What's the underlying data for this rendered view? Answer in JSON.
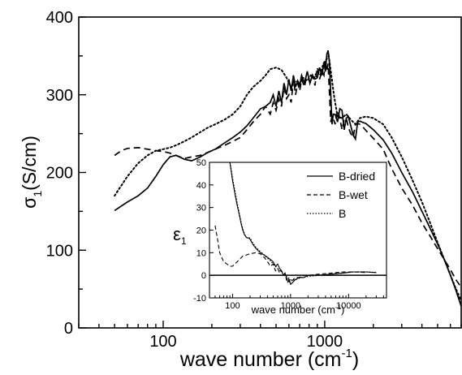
{
  "chart_data": [
    {
      "type": "line",
      "xlabel": "wave number (cm-1)",
      "ylabel": "σ1(S/cm)",
      "xscale": "log",
      "xlim": [
        30,
        7000
      ],
      "ylim": [
        0,
        400
      ],
      "yticks": [
        "0",
        "100",
        "200",
        "300",
        "400"
      ],
      "xticks": [
        "100",
        "1000"
      ],
      "grid": false,
      "series": [
        {
          "style": "solid",
          "x": [
            50,
            60,
            70,
            80,
            90,
            100,
            110,
            120,
            135,
            150,
            170,
            190,
            210,
            240,
            270,
            300,
            330,
            360,
            400,
            430,
            460,
            480,
            500,
            520,
            540,
            560,
            580,
            600,
            620,
            640,
            660,
            680,
            700,
            720,
            750,
            780,
            810,
            840,
            870,
            900,
            930,
            960,
            990,
            1010,
            1030,
            1050,
            1070,
            1090,
            1110,
            1130,
            1160,
            1200,
            1240,
            1280,
            1320,
            1360,
            1400,
            1450,
            1500,
            1550,
            1600,
            1650,
            1700,
            1800,
            2000,
            2300,
            2600,
            3000,
            3500,
            4000,
            4500,
            5000,
            5500,
            6000,
            6500,
            7000
          ],
          "y": [
            151,
            162,
            170,
            180,
            195,
            210,
            220,
            222,
            217,
            215,
            220,
            226,
            230,
            238,
            245,
            252,
            260,
            270,
            282,
            285,
            290,
            300,
            285,
            305,
            290,
            315,
            300,
            320,
            305,
            325,
            310,
            318,
            312,
            325,
            315,
            330,
            315,
            325,
            320,
            322,
            335,
            325,
            340,
            330,
            352,
            357,
            340,
            300,
            262,
            275,
            275,
            265,
            282,
            280,
            255,
            270,
            272,
            260,
            248,
            243,
            265,
            266,
            265,
            263,
            255,
            242,
            225,
            200,
            175,
            150,
            128,
            108,
            88,
            68,
            48,
            28
          ]
        },
        {
          "style": "dashed",
          "x": [
            50,
            55,
            60,
            70,
            80,
            90,
            100,
            110,
            120,
            135,
            150,
            170,
            190,
            210,
            240,
            270,
            300,
            330,
            360,
            400,
            430,
            460,
            480,
            500,
            520,
            540,
            560,
            580,
            600,
            620,
            640,
            660,
            680,
            700,
            720,
            750,
            780,
            810,
            840,
            870,
            900,
            930,
            960,
            990,
            1010,
            1030,
            1050,
            1070,
            1090,
            1110,
            1130,
            1160,
            1200,
            1240,
            1280,
            1320,
            1360,
            1400,
            1450,
            1500,
            1550,
            1600,
            1650,
            1700,
            1800,
            2000,
            2300,
            2600,
            3000,
            3500,
            4000,
            4500,
            5000,
            5500,
            6000,
            6500,
            7000
          ],
          "y": [
            222,
            228,
            231,
            232,
            230,
            228,
            227,
            225,
            222,
            218,
            220,
            222,
            226,
            230,
            235,
            240,
            245,
            255,
            265,
            275,
            285,
            275,
            290,
            280,
            295,
            285,
            310,
            295,
            300,
            290,
            320,
            300,
            315,
            305,
            320,
            310,
            330,
            315,
            325,
            312,
            335,
            320,
            330,
            325,
            345,
            330,
            340,
            300,
            265,
            272,
            270,
            262,
            280,
            270,
            255,
            268,
            270,
            258,
            250,
            245,
            262,
            263,
            262,
            260,
            254,
            244,
            230,
            205,
            180,
            158,
            135,
            118,
            102,
            88,
            75,
            62,
            52
          ]
        },
        {
          "style": "dotted",
          "x": [
            50,
            60,
            70,
            80,
            90,
            100,
            110,
            120,
            135,
            150,
            170,
            190,
            210,
            240,
            270,
            300,
            330,
            360,
            400,
            430,
            460,
            500,
            540,
            580,
            620,
            660,
            700,
            740,
            780,
            820,
            860,
            900,
            940,
            980,
            1020,
            1060,
            1100,
            1140,
            1200,
            1280,
            1360,
            1450,
            1550,
            1650,
            1800,
            2000,
            2300,
            2600,
            3000,
            3500,
            4000,
            4500,
            5000,
            5500,
            6000,
            6500,
            7000
          ],
          "y": [
            170,
            195,
            212,
            222,
            228,
            230,
            232,
            235,
            240,
            245,
            252,
            258,
            262,
            268,
            275,
            285,
            300,
            310,
            318,
            325,
            333,
            335,
            332,
            322,
            310,
            318,
            315,
            322,
            318,
            325,
            322,
            330,
            326,
            340,
            345,
            350,
            325,
            300,
            272,
            270,
            275,
            268,
            262,
            270,
            272,
            270,
            262,
            245,
            220,
            190,
            162,
            135,
            110,
            88,
            68,
            50,
            35
          ]
        }
      ]
    },
    {
      "type": "line",
      "xlabel": "wave number (cm-1)",
      "ylabel": "ε1",
      "xscale": "log",
      "xlim": [
        40,
        45000
      ],
      "ylim": [
        -10,
        50
      ],
      "yticks": [
        "-10",
        "0",
        "10",
        "20",
        "30",
        "40",
        "50"
      ],
      "xticks": [
        "100",
        "1000",
        "10000"
      ],
      "legend": "top-right",
      "series": [
        {
          "name": "B-dried",
          "style": "solid",
          "x": [
            90,
            100,
            110,
            120,
            130,
            140,
            150,
            160,
            170,
            180,
            190,
            200,
            220,
            250,
            300,
            350,
            400,
            450,
            500,
            550,
            600,
            650,
            700,
            750,
            800,
            850,
            900,
            950,
            1000,
            1100,
            1200,
            1400,
            1700,
            2000,
            3000,
            5000,
            8000,
            12000,
            20000,
            30000
          ],
          "y": [
            50,
            42,
            36,
            31,
            27,
            23,
            20,
            18,
            17,
            16.5,
            16.5,
            16,
            14,
            12,
            10,
            9,
            8,
            7,
            6,
            4,
            5,
            3,
            2,
            0,
            1,
            -1,
            -3,
            -2,
            -4,
            -3,
            -2,
            -1,
            -1,
            0,
            0,
            0.5,
            1,
            1.5,
            1.5,
            1.2
          ]
        },
        {
          "name": "B-wet",
          "style": "dashed",
          "x": [
            50,
            55,
            60,
            70,
            80,
            90,
            100,
            120,
            150,
            200,
            250,
            300,
            350,
            400,
            450,
            500,
            550,
            600,
            650,
            700,
            750,
            800,
            850,
            900,
            950,
            1000,
            1100,
            1200,
            1400,
            1700,
            2000,
            3000,
            5000,
            8000,
            12000,
            20000
          ],
          "y": [
            22,
            16,
            10,
            6,
            5,
            4,
            4,
            6,
            8.5,
            9.5,
            10,
            9.5,
            8,
            6,
            4,
            5,
            2,
            3,
            1,
            2,
            0,
            1,
            -2,
            -1,
            -3,
            -3,
            -2,
            -1,
            -1,
            0,
            0,
            0.5,
            1,
            1.5,
            1.5,
            1.2
          ]
        },
        {
          "name": "B",
          "style": "dotted",
          "x": [
            90,
            100,
            110,
            120,
            130,
            140,
            150,
            160,
            170,
            180,
            190,
            200,
            220,
            250,
            300,
            350,
            400,
            450,
            500,
            550,
            600,
            700,
            800,
            900,
            1000,
            1200,
            1500,
            2000,
            3000,
            5000,
            8000,
            12000,
            20000,
            30000
          ],
          "y": [
            50,
            43,
            37,
            32,
            27.5,
            23.5,
            20.5,
            18.5,
            17,
            16.5,
            16.5,
            16.5,
            14.5,
            12.5,
            10.5,
            9,
            7.5,
            6.5,
            5,
            4,
            3,
            1.5,
            0,
            -1,
            -2,
            -2,
            -1,
            -0.5,
            0,
            0.5,
            1,
            1.5,
            1.5,
            1.2
          ]
        }
      ]
    }
  ],
  "labels": {
    "main_xlabel_text": "wave number (cm",
    "main_xlabel_sup": "-1",
    "main_xlabel_close": ")",
    "main_ylabel_base": "σ",
    "main_ylabel_sub": "1",
    "main_ylabel_rest": "(S/cm)",
    "inset_ylabel_base": "ε",
    "inset_ylabel_sub": "1",
    "inset_xlabel_text": "wave number (cm",
    "inset_xlabel_sup": "-1",
    "inset_xlabel_close": ")"
  },
  "colors": {
    "line": "#000000",
    "background": "#ffffff"
  }
}
